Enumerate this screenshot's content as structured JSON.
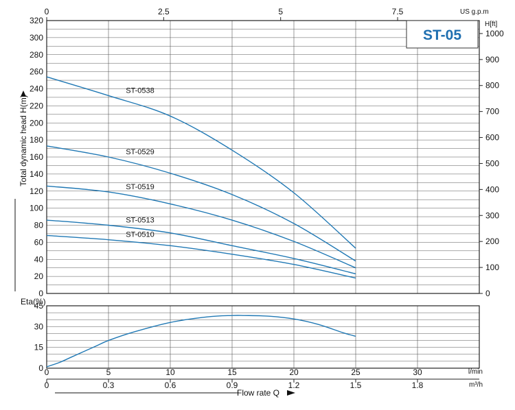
{
  "chart_data": [
    {
      "type": "line",
      "model": "ST-05",
      "ylabel": "Total dynamic head H(m)",
      "ylim": [
        0,
        320
      ],
      "y_ticks": [
        0,
        20,
        40,
        60,
        80,
        100,
        120,
        140,
        160,
        180,
        200,
        220,
        240,
        260,
        280,
        300,
        320
      ],
      "x_unit": "l/min",
      "xlim": [
        0,
        35
      ],
      "right_axis": {
        "label": "H[ft]",
        "ticks": [
          0,
          100,
          200,
          300,
          400,
          500,
          600,
          700,
          800,
          900,
          1000
        ]
      },
      "top_axis": {
        "label": "US g.p.m",
        "ticks": [
          "0",
          "2.5",
          "5",
          "7.5"
        ],
        "values": [
          0,
          2.5,
          5,
          7.5
        ]
      },
      "grid": true,
      "series": [
        {
          "name": "ST-0538",
          "x": [
            0,
            5,
            10,
            15,
            20,
            25
          ],
          "values": [
            254,
            232,
            208,
            168,
            118,
            53
          ]
        },
        {
          "name": "ST-0529",
          "x": [
            0,
            5,
            10,
            15,
            20,
            25
          ],
          "values": [
            173,
            160,
            141,
            116,
            82,
            38
          ]
        },
        {
          "name": "ST-0519",
          "x": [
            0,
            5,
            10,
            15,
            20,
            25
          ],
          "values": [
            126,
            119,
            105,
            86,
            61,
            30
          ]
        },
        {
          "name": "ST-0513",
          "x": [
            0,
            5,
            10,
            15,
            20,
            25
          ],
          "values": [
            86,
            80,
            71,
            56,
            41,
            23
          ]
        },
        {
          "name": "ST-0510",
          "x": [
            0,
            5,
            10,
            15,
            20,
            25
          ],
          "values": [
            68,
            63,
            56,
            46,
            34,
            18
          ]
        }
      ]
    },
    {
      "type": "line",
      "ylabel": "Eta(%)",
      "ylim": [
        0,
        45
      ],
      "y_ticks": [
        0,
        15,
        30,
        45
      ],
      "xlabel": "Flow rate Q",
      "xlim": [
        0,
        35
      ],
      "x_ticks": [
        0,
        5,
        10,
        15,
        20,
        25,
        30
      ],
      "x_unit": "l/min",
      "x2_unit": "m³/h",
      "x2_ticks": [
        "0",
        "0.3",
        "0.6",
        "0.9",
        "1.2",
        "1.5",
        "1.8"
      ],
      "grid": true,
      "series": [
        {
          "name": "",
          "x": [
            0,
            1,
            2,
            3,
            4,
            5,
            7,
            10,
            13,
            15,
            16,
            18,
            20,
            22,
            24,
            25
          ],
          "values": [
            1,
            4,
            8,
            12,
            16,
            20,
            26,
            33,
            37,
            38,
            38,
            37.5,
            35.5,
            31.5,
            25.5,
            23
          ]
        }
      ]
    }
  ]
}
